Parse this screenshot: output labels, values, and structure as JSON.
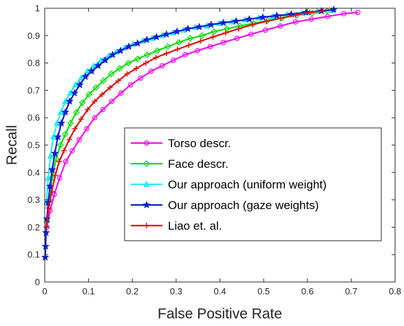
{
  "chart_data": {
    "type": "line",
    "title": "",
    "xlabel": "False Positive Rate",
    "ylabel": "Recall",
    "xlim": [
      0,
      0.8
    ],
    "ylim": [
      0,
      1
    ],
    "xticks": [
      "0",
      "0.1",
      "0.2",
      "0.3",
      "0.4",
      "0.5",
      "0.6",
      "0.7",
      "0.8"
    ],
    "yticks": [
      "0",
      "0.1",
      "0.2",
      "0.3",
      "0.4",
      "0.5",
      "0.6",
      "0.7",
      "0.8",
      "0.9",
      "1"
    ],
    "grid": false,
    "legend_position": "center-right",
    "series": [
      {
        "name": "Torso descr.",
        "color": "#ee11ee",
        "marker": "circle",
        "x": [
          0.005,
          0.012,
          0.022,
          0.034,
          0.048,
          0.063,
          0.079,
          0.096,
          0.114,
          0.133,
          0.153,
          0.174,
          0.196,
          0.219,
          0.243,
          0.268,
          0.294,
          0.321,
          0.349,
          0.378,
          0.408,
          0.439,
          0.471,
          0.504,
          0.538,
          0.573,
          0.609,
          0.646,
          0.683,
          0.715
        ],
        "y": [
          0.2,
          0.26,
          0.32,
          0.38,
          0.44,
          0.48,
          0.52,
          0.56,
          0.6,
          0.63,
          0.66,
          0.69,
          0.72,
          0.745,
          0.77,
          0.79,
          0.81,
          0.83,
          0.845,
          0.86,
          0.875,
          0.89,
          0.905,
          0.92,
          0.935,
          0.95,
          0.96,
          0.97,
          0.98,
          0.985
        ]
      },
      {
        "name": "Face descr.",
        "color": "#11dd11",
        "marker": "diamond",
        "x": [
          0.005,
          0.01,
          0.017,
          0.026,
          0.036,
          0.047,
          0.059,
          0.072,
          0.086,
          0.101,
          0.117,
          0.134,
          0.152,
          0.171,
          0.191,
          0.212,
          0.234,
          0.257,
          0.281,
          0.306,
          0.332,
          0.359,
          0.387,
          0.416,
          0.446,
          0.477,
          0.509,
          0.542,
          0.576,
          0.611,
          0.645
        ],
        "y": [
          0.22,
          0.3,
          0.38,
          0.45,
          0.5,
          0.54,
          0.58,
          0.62,
          0.655,
          0.685,
          0.71,
          0.735,
          0.76,
          0.78,
          0.8,
          0.815,
          0.83,
          0.845,
          0.86,
          0.875,
          0.89,
          0.9,
          0.915,
          0.925,
          0.935,
          0.945,
          0.955,
          0.965,
          0.975,
          0.982,
          0.99
        ]
      },
      {
        "name": "Our approach (uniform weight)",
        "color": "#22eeee",
        "marker": "triangle",
        "x": [
          0.004,
          0.008,
          0.013,
          0.02,
          0.028,
          0.037,
          0.047,
          0.058,
          0.07,
          0.083,
          0.097,
          0.112,
          0.128,
          0.145,
          0.163,
          0.182,
          0.202,
          0.223,
          0.245,
          0.268,
          0.292,
          0.317,
          0.343,
          0.37,
          0.398,
          0.427,
          0.457,
          0.488,
          0.52,
          0.553,
          0.587,
          0.622,
          0.655
        ],
        "y": [
          0.29,
          0.38,
          0.46,
          0.53,
          0.58,
          0.62,
          0.66,
          0.69,
          0.72,
          0.745,
          0.77,
          0.79,
          0.81,
          0.825,
          0.84,
          0.855,
          0.87,
          0.88,
          0.89,
          0.9,
          0.91,
          0.92,
          0.93,
          0.935,
          0.945,
          0.95,
          0.958,
          0.965,
          0.97,
          0.977,
          0.982,
          0.988,
          0.993
        ]
      },
      {
        "name": "Our approach (gaze weights)",
        "color": "#0a1fd6",
        "marker": "star",
        "x": [
          0.001,
          0.002,
          0.003,
          0.005,
          0.008,
          0.012,
          0.017,
          0.023,
          0.03,
          0.038,
          0.047,
          0.057,
          0.068,
          0.08,
          0.093,
          0.107,
          0.122,
          0.138,
          0.155,
          0.173,
          0.192,
          0.212,
          0.233,
          0.255,
          0.278,
          0.302,
          0.327,
          0.353,
          0.38,
          0.408,
          0.437,
          0.467,
          0.498,
          0.53,
          0.563,
          0.597,
          0.632,
          0.66
        ],
        "y": [
          0.09,
          0.13,
          0.18,
          0.23,
          0.29,
          0.35,
          0.41,
          0.47,
          0.53,
          0.58,
          0.62,
          0.66,
          0.69,
          0.72,
          0.75,
          0.77,
          0.79,
          0.81,
          0.83,
          0.845,
          0.86,
          0.872,
          0.885,
          0.895,
          0.905,
          0.915,
          0.925,
          0.932,
          0.94,
          0.947,
          0.953,
          0.96,
          0.967,
          0.973,
          0.978,
          0.985,
          0.99,
          0.995
        ]
      },
      {
        "name": "Liao et. al.",
        "color": "#e01010",
        "marker": "plus",
        "x": [
          0.004,
          0.009,
          0.016,
          0.024,
          0.033,
          0.044,
          0.056,
          0.069,
          0.083,
          0.098,
          0.114,
          0.131,
          0.149,
          0.168,
          0.188,
          0.209,
          0.231,
          0.254,
          0.278,
          0.303,
          0.329,
          0.356,
          0.384,
          0.413,
          0.443,
          0.474,
          0.506,
          0.539,
          0.573,
          0.605,
          0.635
        ],
        "y": [
          0.2,
          0.27,
          0.33,
          0.39,
          0.44,
          0.48,
          0.52,
          0.56,
          0.595,
          0.63,
          0.66,
          0.685,
          0.71,
          0.735,
          0.76,
          0.78,
          0.8,
          0.82,
          0.835,
          0.85,
          0.865,
          0.88,
          0.895,
          0.91,
          0.925,
          0.94,
          0.952,
          0.963,
          0.975,
          0.985,
          0.99
        ]
      }
    ]
  }
}
